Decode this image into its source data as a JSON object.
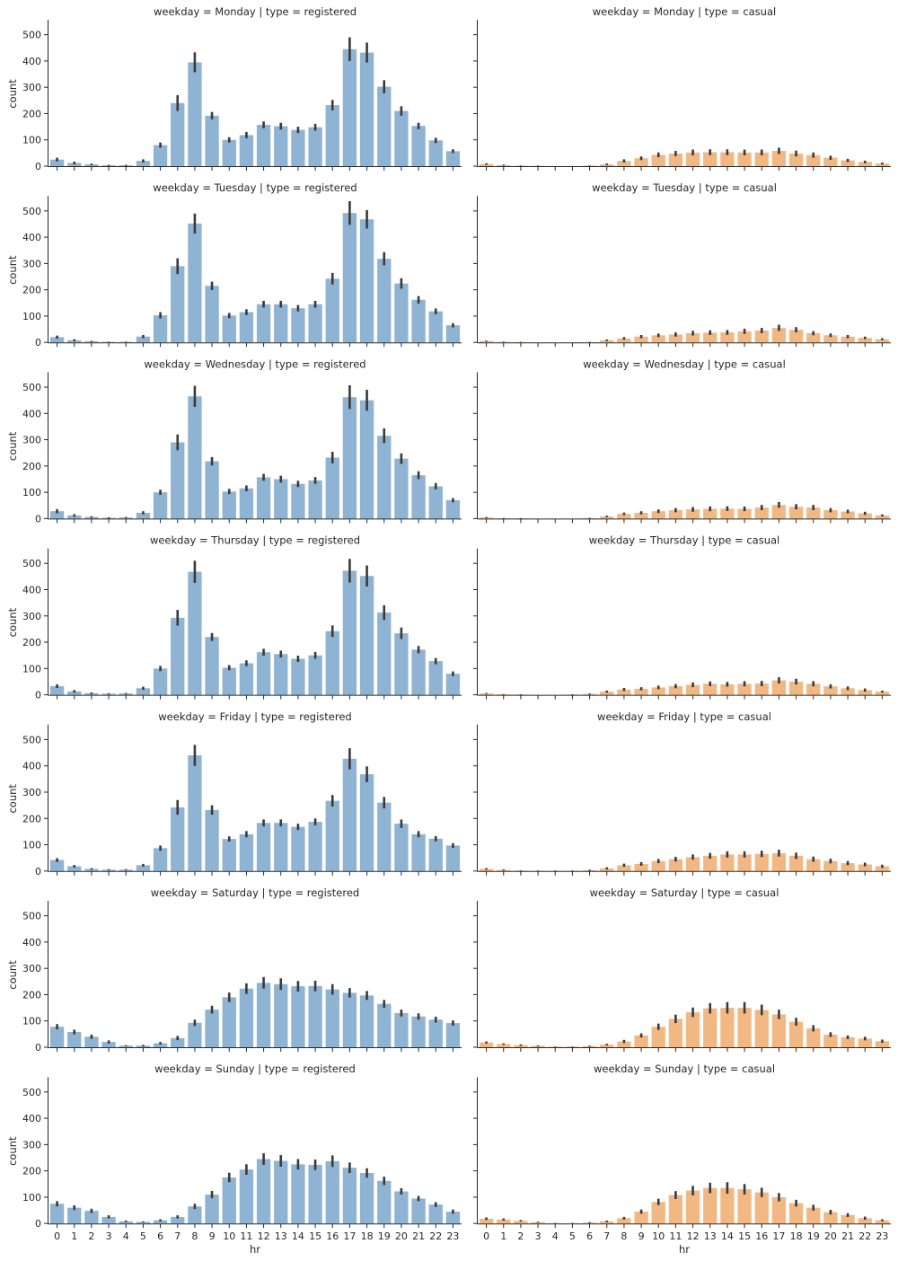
{
  "chart_data": {
    "type": "bar",
    "facet_grid": {
      "rows": "weekday",
      "cols": "type"
    },
    "x_label": "hr",
    "y_label": "count",
    "x_categories": [
      "0",
      "1",
      "2",
      "3",
      "4",
      "5",
      "6",
      "7",
      "8",
      "9",
      "10",
      "11",
      "12",
      "13",
      "14",
      "15",
      "16",
      "17",
      "18",
      "19",
      "20",
      "21",
      "22",
      "23"
    ],
    "y_ticks": [
      0,
      100,
      200,
      300,
      400,
      500
    ],
    "ylim": [
      0,
      550
    ],
    "colors": {
      "registered": "#8fb3d2",
      "casual": "#f2b884",
      "error_bar": "#3a3a3a"
    },
    "panels": [
      {
        "title": "weekday = Monday | type = registered",
        "type": "registered",
        "values": [
          25,
          12,
          7,
          3,
          3,
          20,
          80,
          240,
          395,
          192,
          100,
          118,
          157,
          152,
          138,
          148,
          232,
          445,
          432,
          302,
          210,
          153,
          98,
          57
        ],
        "errors": [
          7,
          5,
          3,
          2,
          2,
          6,
          10,
          30,
          38,
          14,
          10,
          12,
          13,
          13,
          12,
          13,
          20,
          45,
          38,
          25,
          18,
          12,
          10,
          7
        ]
      },
      {
        "title": "weekday = Monday | type = casual",
        "type": "casual",
        "values": [
          8,
          4,
          2,
          1,
          0,
          0,
          2,
          7,
          20,
          30,
          43,
          48,
          52,
          53,
          53,
          52,
          52,
          58,
          48,
          42,
          32,
          22,
          16,
          10
        ],
        "errors": [
          3,
          2,
          1,
          1,
          0,
          0,
          1,
          3,
          6,
          7,
          9,
          10,
          11,
          11,
          11,
          11,
          11,
          12,
          11,
          10,
          8,
          6,
          5,
          4
        ]
      },
      {
        "title": "weekday = Tuesday | type = registered",
        "type": "registered",
        "values": [
          20,
          8,
          4,
          2,
          2,
          22,
          103,
          290,
          452,
          215,
          102,
          115,
          145,
          145,
          130,
          145,
          242,
          492,
          468,
          318,
          224,
          162,
          118,
          65
        ],
        "errors": [
          6,
          4,
          2,
          1,
          1,
          6,
          12,
          30,
          38,
          16,
          10,
          11,
          13,
          13,
          12,
          13,
          22,
          45,
          35,
          25,
          20,
          14,
          11,
          8
        ]
      },
      {
        "title": "weekday = Tuesday | type = casual",
        "type": "casual",
        "values": [
          5,
          2,
          1,
          0,
          0,
          0,
          1,
          8,
          15,
          22,
          27,
          30,
          35,
          37,
          38,
          42,
          45,
          55,
          48,
          35,
          27,
          22,
          17,
          12
        ],
        "errors": [
          2,
          1,
          1,
          0,
          0,
          0,
          1,
          3,
          5,
          6,
          7,
          8,
          9,
          9,
          9,
          10,
          10,
          12,
          10,
          8,
          7,
          6,
          5,
          4
        ]
      },
      {
        "title": "weekday = Wednesday | type = registered",
        "type": "registered",
        "values": [
          28,
          12,
          6,
          3,
          4,
          22,
          100,
          290,
          465,
          218,
          103,
          115,
          157,
          150,
          132,
          145,
          232,
          462,
          450,
          315,
          228,
          165,
          123,
          70
        ],
        "errors": [
          8,
          5,
          3,
          2,
          2,
          6,
          10,
          30,
          40,
          16,
          10,
          11,
          13,
          13,
          12,
          13,
          22,
          45,
          40,
          28,
          20,
          15,
          12,
          8
        ]
      },
      {
        "title": "weekday = Wednesday | type = casual",
        "type": "casual",
        "values": [
          4,
          1,
          1,
          0,
          0,
          0,
          2,
          8,
          18,
          22,
          28,
          32,
          35,
          37,
          38,
          37,
          42,
          52,
          45,
          42,
          32,
          27,
          20,
          12
        ],
        "errors": [
          2,
          1,
          1,
          0,
          0,
          0,
          1,
          3,
          5,
          6,
          7,
          8,
          9,
          9,
          9,
          9,
          10,
          11,
          10,
          10,
          8,
          7,
          6,
          4
        ]
      },
      {
        "title": "weekday = Thursday | type = registered",
        "type": "registered",
        "values": [
          33,
          13,
          6,
          4,
          5,
          25,
          100,
          293,
          468,
          220,
          103,
          120,
          162,
          155,
          137,
          150,
          242,
          472,
          452,
          313,
          234,
          172,
          128,
          80
        ],
        "errors": [
          7,
          5,
          3,
          2,
          2,
          6,
          10,
          30,
          42,
          15,
          10,
          11,
          13,
          13,
          12,
          13,
          22,
          45,
          40,
          28,
          22,
          14,
          12,
          9
        ]
      },
      {
        "title": "weekday = Thursday | type = casual",
        "type": "casual",
        "values": [
          5,
          2,
          1,
          0,
          0,
          1,
          3,
          12,
          20,
          23,
          28,
          33,
          38,
          42,
          40,
          42,
          43,
          55,
          50,
          42,
          32,
          25,
          18,
          12
        ],
        "errors": [
          2,
          1,
          1,
          0,
          0,
          1,
          2,
          4,
          6,
          6,
          7,
          8,
          9,
          9,
          9,
          10,
          10,
          12,
          11,
          10,
          8,
          7,
          6,
          4
        ]
      },
      {
        "title": "weekday = Friday | type = registered",
        "type": "registered",
        "values": [
          42,
          18,
          8,
          5,
          5,
          22,
          87,
          242,
          440,
          232,
          122,
          140,
          183,
          183,
          168,
          187,
          267,
          427,
          368,
          260,
          180,
          140,
          123,
          97
        ],
        "errors": [
          7,
          5,
          3,
          2,
          2,
          5,
          10,
          28,
          40,
          18,
          10,
          12,
          13,
          13,
          12,
          13,
          22,
          40,
          30,
          22,
          16,
          12,
          10,
          9
        ]
      },
      {
        "title": "weekday = Friday | type = casual",
        "type": "casual",
        "values": [
          8,
          4,
          2,
          1,
          1,
          1,
          3,
          10,
          22,
          27,
          38,
          45,
          53,
          58,
          63,
          63,
          65,
          68,
          58,
          45,
          38,
          30,
          25,
          18
        ],
        "errors": [
          3,
          2,
          1,
          1,
          1,
          1,
          2,
          4,
          6,
          7,
          8,
          9,
          10,
          11,
          12,
          12,
          12,
          13,
          12,
          10,
          9,
          8,
          7,
          6
        ]
      },
      {
        "title": "weekday = Saturday | type = registered",
        "type": "registered",
        "values": [
          78,
          58,
          40,
          20,
          6,
          6,
          15,
          35,
          93,
          143,
          190,
          223,
          245,
          240,
          232,
          233,
          220,
          207,
          197,
          165,
          130,
          117,
          105,
          92
        ],
        "errors": [
          10,
          9,
          8,
          6,
          2,
          3,
          5,
          8,
          12,
          15,
          18,
          20,
          22,
          22,
          20,
          20,
          20,
          18,
          17,
          15,
          13,
          12,
          11,
          10
        ]
      },
      {
        "title": "weekday = Saturday | type = casual",
        "type": "casual",
        "values": [
          18,
          12,
          8,
          5,
          2,
          2,
          4,
          10,
          22,
          45,
          78,
          108,
          133,
          148,
          150,
          150,
          142,
          125,
          97,
          72,
          48,
          38,
          33,
          23
        ],
        "errors": [
          4,
          3,
          3,
          2,
          1,
          1,
          2,
          3,
          6,
          8,
          12,
          16,
          18,
          20,
          22,
          22,
          20,
          18,
          15,
          12,
          9,
          7,
          7,
          6
        ]
      },
      {
        "title": "weekday = Sunday | type = registered",
        "type": "registered",
        "values": [
          75,
          60,
          48,
          25,
          8,
          6,
          12,
          25,
          65,
          110,
          175,
          205,
          245,
          238,
          225,
          223,
          237,
          212,
          192,
          162,
          122,
          95,
          72,
          45
        ],
        "errors": [
          10,
          9,
          8,
          6,
          3,
          2,
          4,
          6,
          10,
          14,
          18,
          20,
          22,
          22,
          20,
          20,
          22,
          20,
          18,
          16,
          12,
          10,
          9,
          8
        ]
      },
      {
        "title": "weekday = Sunday | type = casual",
        "type": "casual",
        "values": [
          18,
          15,
          10,
          5,
          1,
          1,
          3,
          8,
          20,
          45,
          82,
          108,
          125,
          135,
          135,
          130,
          118,
          100,
          77,
          60,
          43,
          32,
          20,
          12
        ],
        "errors": [
          5,
          4,
          3,
          2,
          1,
          1,
          2,
          3,
          5,
          8,
          12,
          15,
          18,
          20,
          22,
          20,
          18,
          16,
          13,
          11,
          9,
          7,
          6,
          4
        ]
      }
    ]
  }
}
